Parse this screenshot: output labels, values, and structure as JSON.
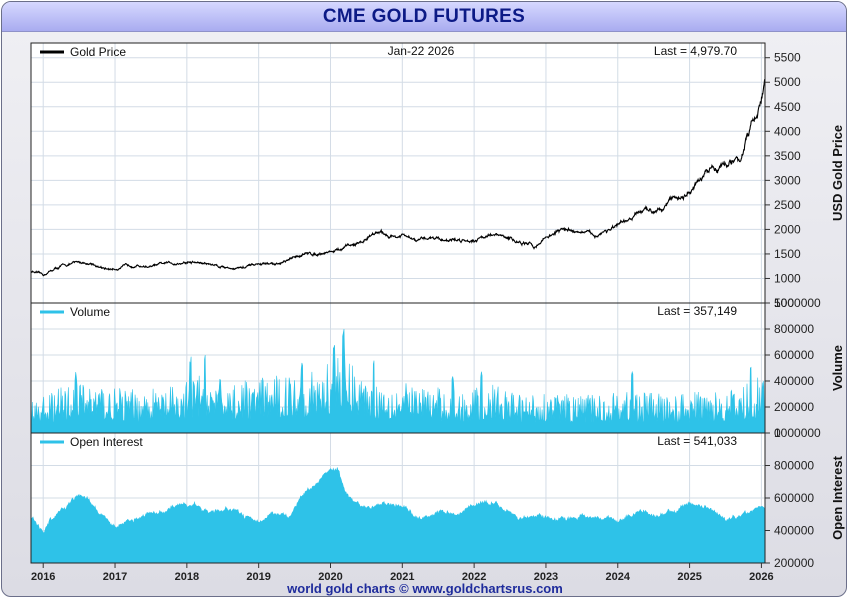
{
  "title": "CME GOLD FUTURES",
  "footer": "world gold charts © www.goldchartsrus.com",
  "colors": {
    "price": "#000000",
    "fill": "#2ec2e8",
    "grid": "#d3dce6",
    "title": "#0c1a86"
  },
  "chart_data": [
    {
      "type": "line",
      "name": "price",
      "legend": "Gold Price",
      "date_label": "Jan-22  2026",
      "last_label": "Last = 4,979.70",
      "ylabel": "USD Gold Price",
      "ylim": [
        500,
        5800
      ],
      "yticks": [
        500,
        1000,
        1500,
        2000,
        2500,
        3000,
        3500,
        4000,
        4500,
        5000,
        5500
      ],
      "x": [
        2015.83,
        2016.0,
        2016.1,
        2016.25,
        2016.5,
        2016.7,
        2016.85,
        2017.0,
        2017.25,
        2017.5,
        2017.7,
        2017.95,
        2018.1,
        2018.3,
        2018.6,
        2018.8,
        2019.0,
        2019.3,
        2019.45,
        2019.6,
        2019.75,
        2019.95,
        2020.15,
        2020.25,
        2020.45,
        2020.6,
        2020.75,
        2020.9,
        2021.0,
        2021.2,
        2021.4,
        2021.6,
        2021.8,
        2022.0,
        2022.2,
        2022.45,
        2022.7,
        2022.85,
        2023.0,
        2023.2,
        2023.35,
        2023.5,
        2023.7,
        2023.8,
        2024.0,
        2024.2,
        2024.3,
        2024.5,
        2024.8,
        2024.95,
        2025.1,
        2025.3,
        2025.5,
        2025.7,
        2025.8,
        2025.95,
        2026.05
      ],
      "values": [
        1150,
        1060,
        1150,
        1250,
        1330,
        1300,
        1180,
        1200,
        1280,
        1240,
        1300,
        1320,
        1330,
        1300,
        1220,
        1220,
        1290,
        1300,
        1380,
        1500,
        1500,
        1550,
        1580,
        1650,
        1750,
        1950,
        1900,
        1850,
        1870,
        1750,
        1850,
        1800,
        1780,
        1800,
        1900,
        1830,
        1700,
        1650,
        1850,
        1980,
        2000,
        1940,
        1870,
        1970,
        2050,
        2200,
        2350,
        2400,
        2650,
        2700,
        2900,
        3250,
        3350,
        3400,
        3900,
        4350,
        4980
      ]
    },
    {
      "type": "area",
      "name": "volume",
      "legend": "Volume",
      "last_label": "Last = 357,149",
      "ylabel": "Volume",
      "ylim": [
        0,
        1000000
      ],
      "yticks": [
        0,
        200000,
        400000,
        600000,
        800000,
        1000000
      ],
      "x": [
        2015.83,
        2016.2,
        2016.6,
        2017.0,
        2017.4,
        2017.9,
        2018.2,
        2018.6,
        2019.0,
        2019.4,
        2019.8,
        2020.0,
        2020.15,
        2020.3,
        2020.6,
        2021.0,
        2021.4,
        2021.8,
        2022.2,
        2022.6,
        2023.0,
        2023.4,
        2023.8,
        2024.2,
        2024.6,
        2025.0,
        2025.3,
        2025.6,
        2025.9,
        2026.05
      ],
      "values": [
        180000,
        250000,
        300000,
        250000,
        240000,
        260000,
        340000,
        280000,
        300000,
        330000,
        340000,
        400000,
        520000,
        380000,
        300000,
        280000,
        260000,
        230000,
        280000,
        220000,
        230000,
        210000,
        220000,
        250000,
        220000,
        220000,
        260000,
        240000,
        300000,
        357149
      ],
      "peaks": [
        [
          2016.45,
          470000
        ],
        [
          2018.05,
          600000
        ],
        [
          2018.25,
          600000
        ],
        [
          2019.6,
          570000
        ],
        [
          2020.05,
          720000
        ],
        [
          2020.18,
          800000
        ],
        [
          2020.6,
          560000
        ],
        [
          2021.7,
          440000
        ],
        [
          2022.1,
          500000
        ],
        [
          2024.2,
          480000
        ],
        [
          2025.85,
          540000
        ]
      ]
    },
    {
      "type": "area",
      "name": "oi",
      "legend": "Open Interest",
      "last_label": "Last = 541,033",
      "ylabel": "Open Interest",
      "ylim": [
        200000,
        1000000
      ],
      "yticks": [
        200000,
        400000,
        600000,
        800000,
        1000000
      ],
      "x": [
        2015.83,
        2016.0,
        2016.1,
        2016.3,
        2016.5,
        2016.7,
        2016.85,
        2017.0,
        2017.3,
        2017.6,
        2017.9,
        2018.1,
        2018.3,
        2018.6,
        2018.8,
        2019.0,
        2019.2,
        2019.45,
        2019.6,
        2019.8,
        2019.95,
        2020.1,
        2020.2,
        2020.35,
        2020.6,
        2020.8,
        2021.0,
        2021.2,
        2021.5,
        2021.8,
        2022.1,
        2022.3,
        2022.6,
        2022.9,
        2023.2,
        2023.5,
        2023.8,
        2024.0,
        2024.3,
        2024.5,
        2024.8,
        2025.0,
        2025.2,
        2025.5,
        2025.8,
        2026.05
      ],
      "values": [
        480000,
        390000,
        470000,
        540000,
        620000,
        560000,
        480000,
        420000,
        470000,
        500000,
        560000,
        570000,
        510000,
        540000,
        490000,
        450000,
        500000,
        480000,
        610000,
        690000,
        750000,
        790000,
        640000,
        560000,
        540000,
        560000,
        550000,
        480000,
        520000,
        500000,
        580000,
        560000,
        480000,
        500000,
        470000,
        500000,
        460000,
        460000,
        520000,
        500000,
        520000,
        560000,
        540000,
        480000,
        500000,
        541033
      ]
    }
  ],
  "x_axis": {
    "xlim": [
      2015.83,
      2026.05
    ],
    "ticks": [
      {
        "label": "2016",
        "value": 2016.0
      },
      {
        "label": "2017",
        "value": 2017.0
      },
      {
        "label": "2018",
        "value": 2018.0
      },
      {
        "label": "2019",
        "value": 2019.0
      },
      {
        "label": "2020",
        "value": 2020.0
      },
      {
        "label": "2021",
        "value": 2021.0
      },
      {
        "label": "2022",
        "value": 2022.0
      },
      {
        "label": "2023",
        "value": 2023.0
      },
      {
        "label": "2024",
        "value": 2024.0
      },
      {
        "label": "2025",
        "value": 2025.0
      },
      {
        "label": "2026",
        "value": 2026.0
      }
    ]
  }
}
